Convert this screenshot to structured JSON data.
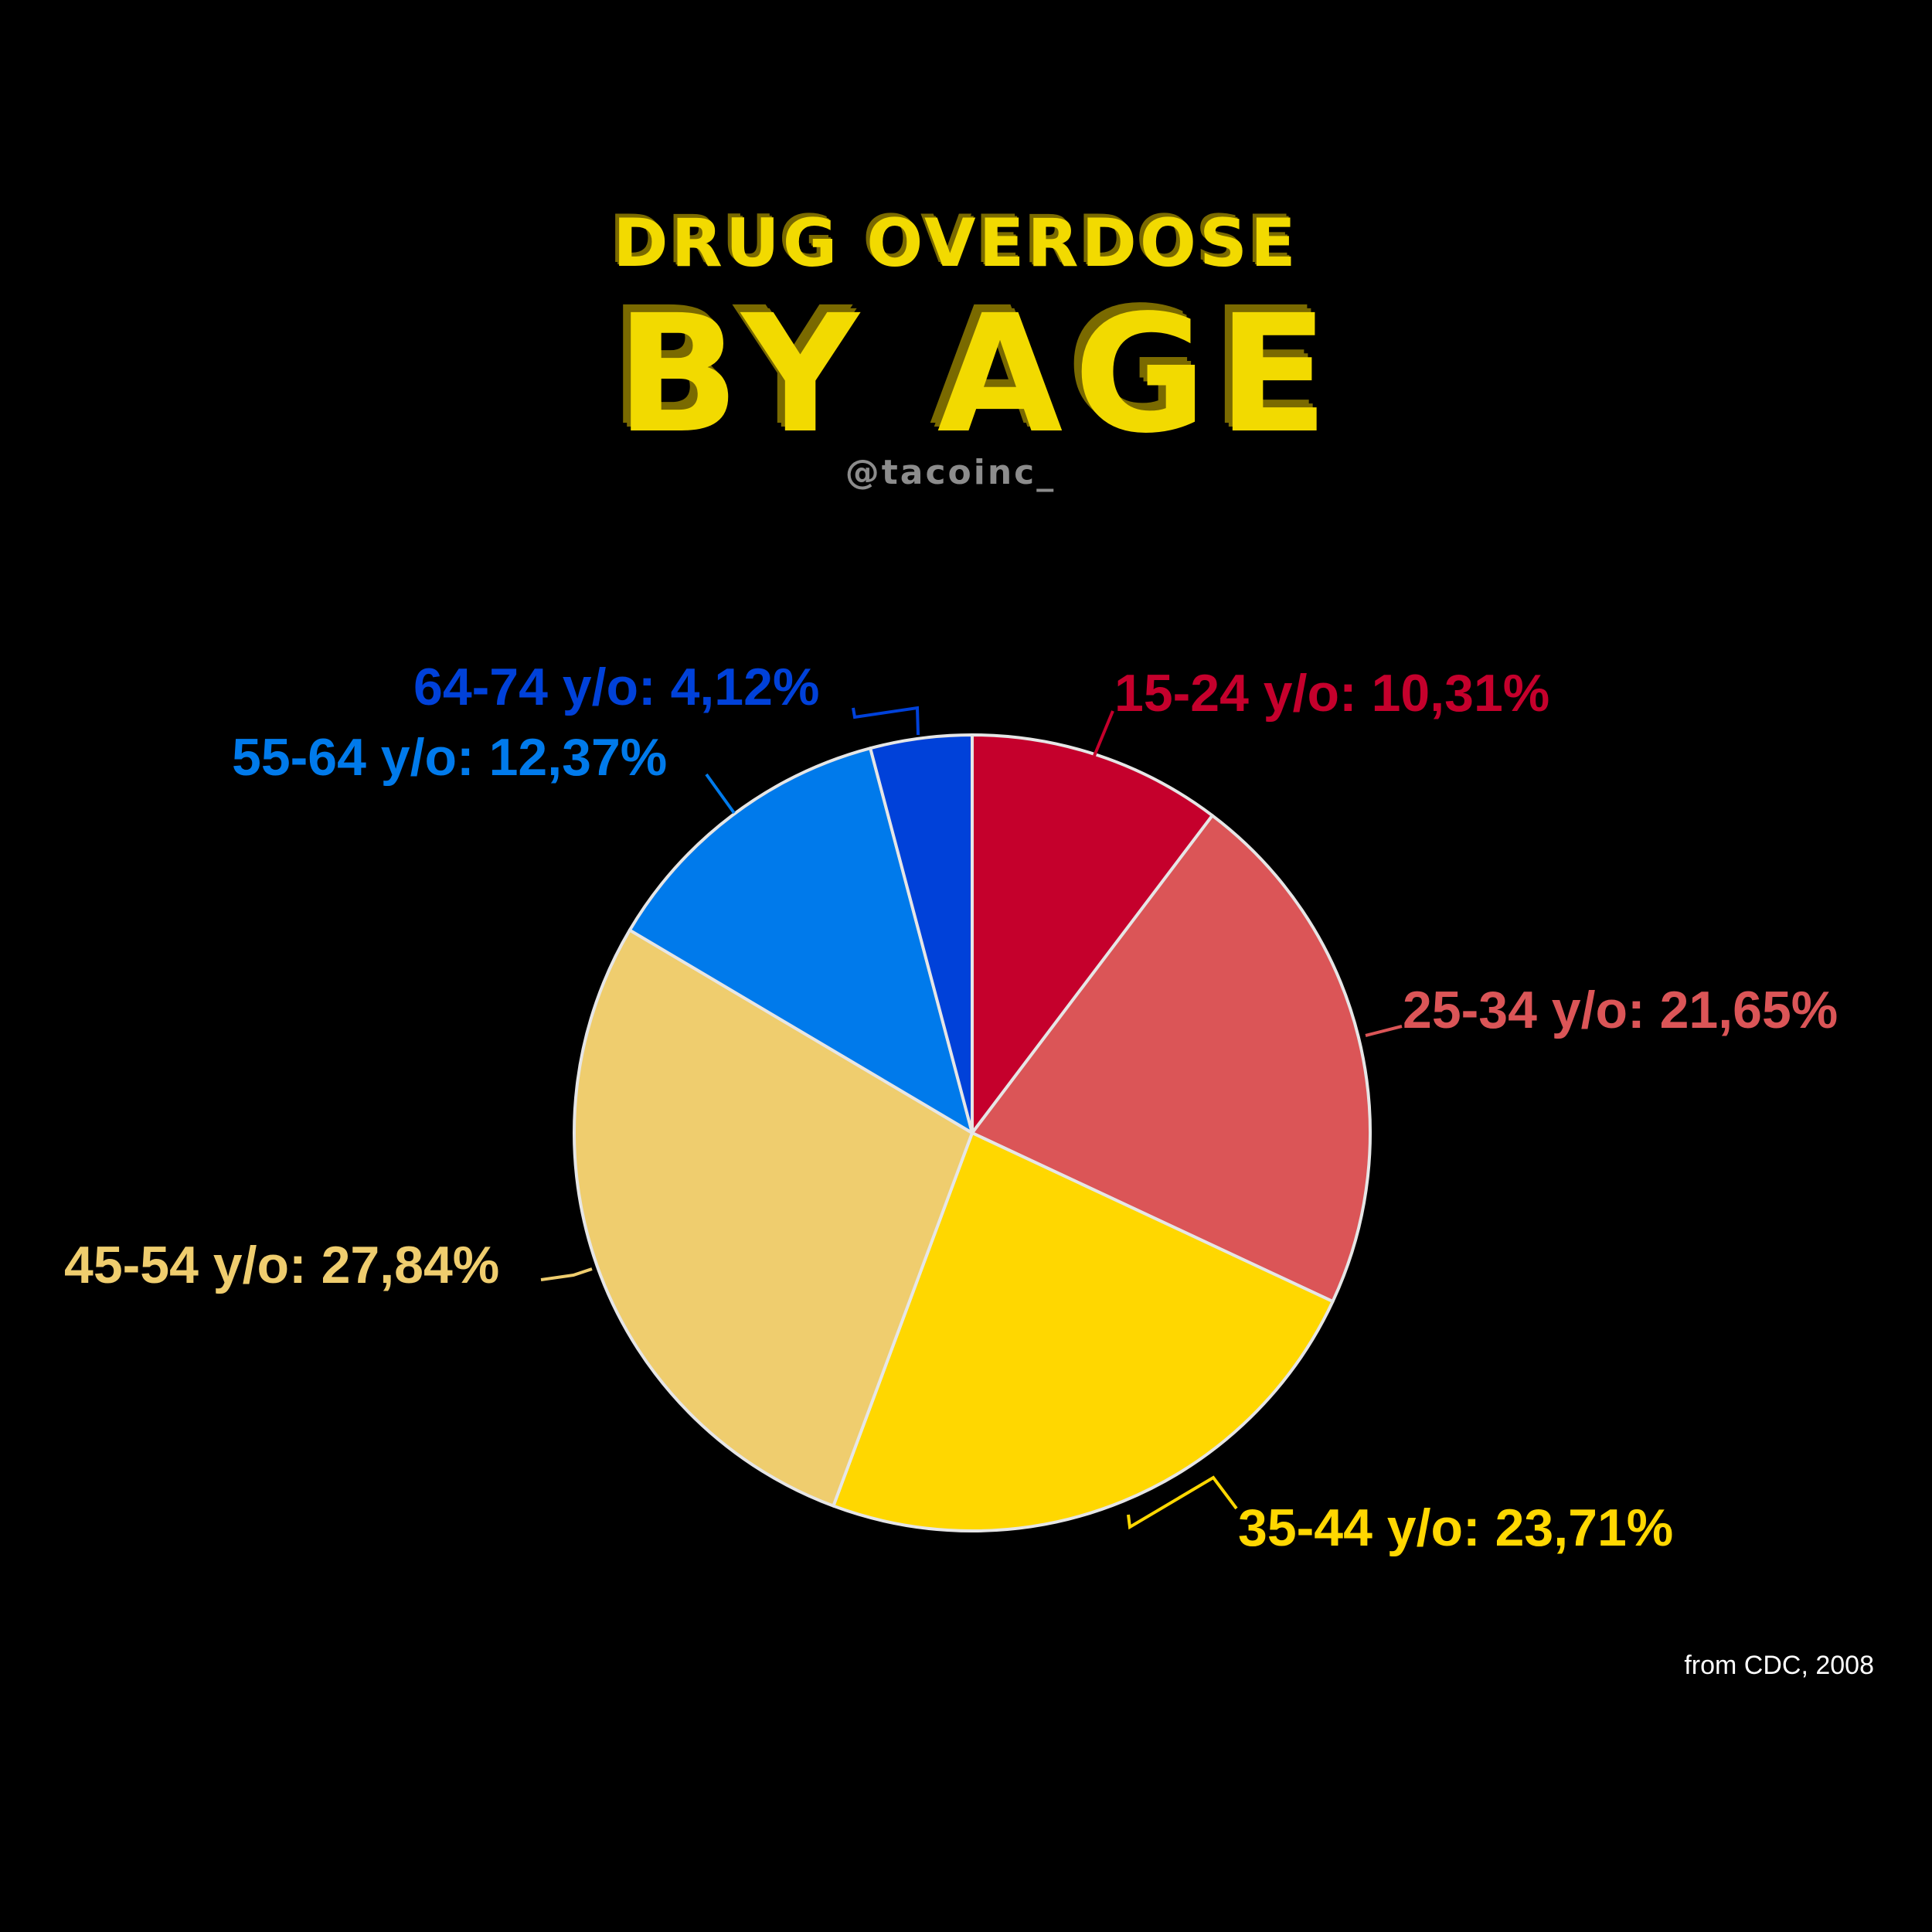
{
  "header": {
    "title_line_1": "DRUG OVERDOSE",
    "title_line_2": "BY AGE",
    "handle": "@tacoinc_"
  },
  "footer": {
    "source": "from CDC, 2008"
  },
  "chart_data": {
    "type": "pie",
    "title": "DRUG OVERDOSE BY AGE",
    "start_angle_deg": 0,
    "direction": "clockwise",
    "slice_border_color": "#E6E6E6",
    "slices": [
      {
        "label": "15-24 y/o: 10,31%",
        "name": "15-24 y/o",
        "value": 10.31,
        "color": "#C5002C"
      },
      {
        "label": "25-34 y/o: 21,65%",
        "name": "25-34 y/o",
        "value": 21.65,
        "color": "#DB5557"
      },
      {
        "label": "35-44 y/o: 23,71%",
        "name": "35-44 y/o",
        "value": 23.71,
        "color": "#FFD700"
      },
      {
        "label": "45-54 y/o: 27,84%",
        "name": "45-54 y/o",
        "value": 27.84,
        "color": "#EFCD6E"
      },
      {
        "label": "55-64 y/o: 12,37%",
        "name": "55-64 y/o",
        "value": 12.37,
        "color": "#007AEB"
      },
      {
        "label": "64-74 y/o: 4,12%",
        "name": "64-74 y/o",
        "value": 4.12,
        "color": "#0041D9"
      }
    ]
  }
}
